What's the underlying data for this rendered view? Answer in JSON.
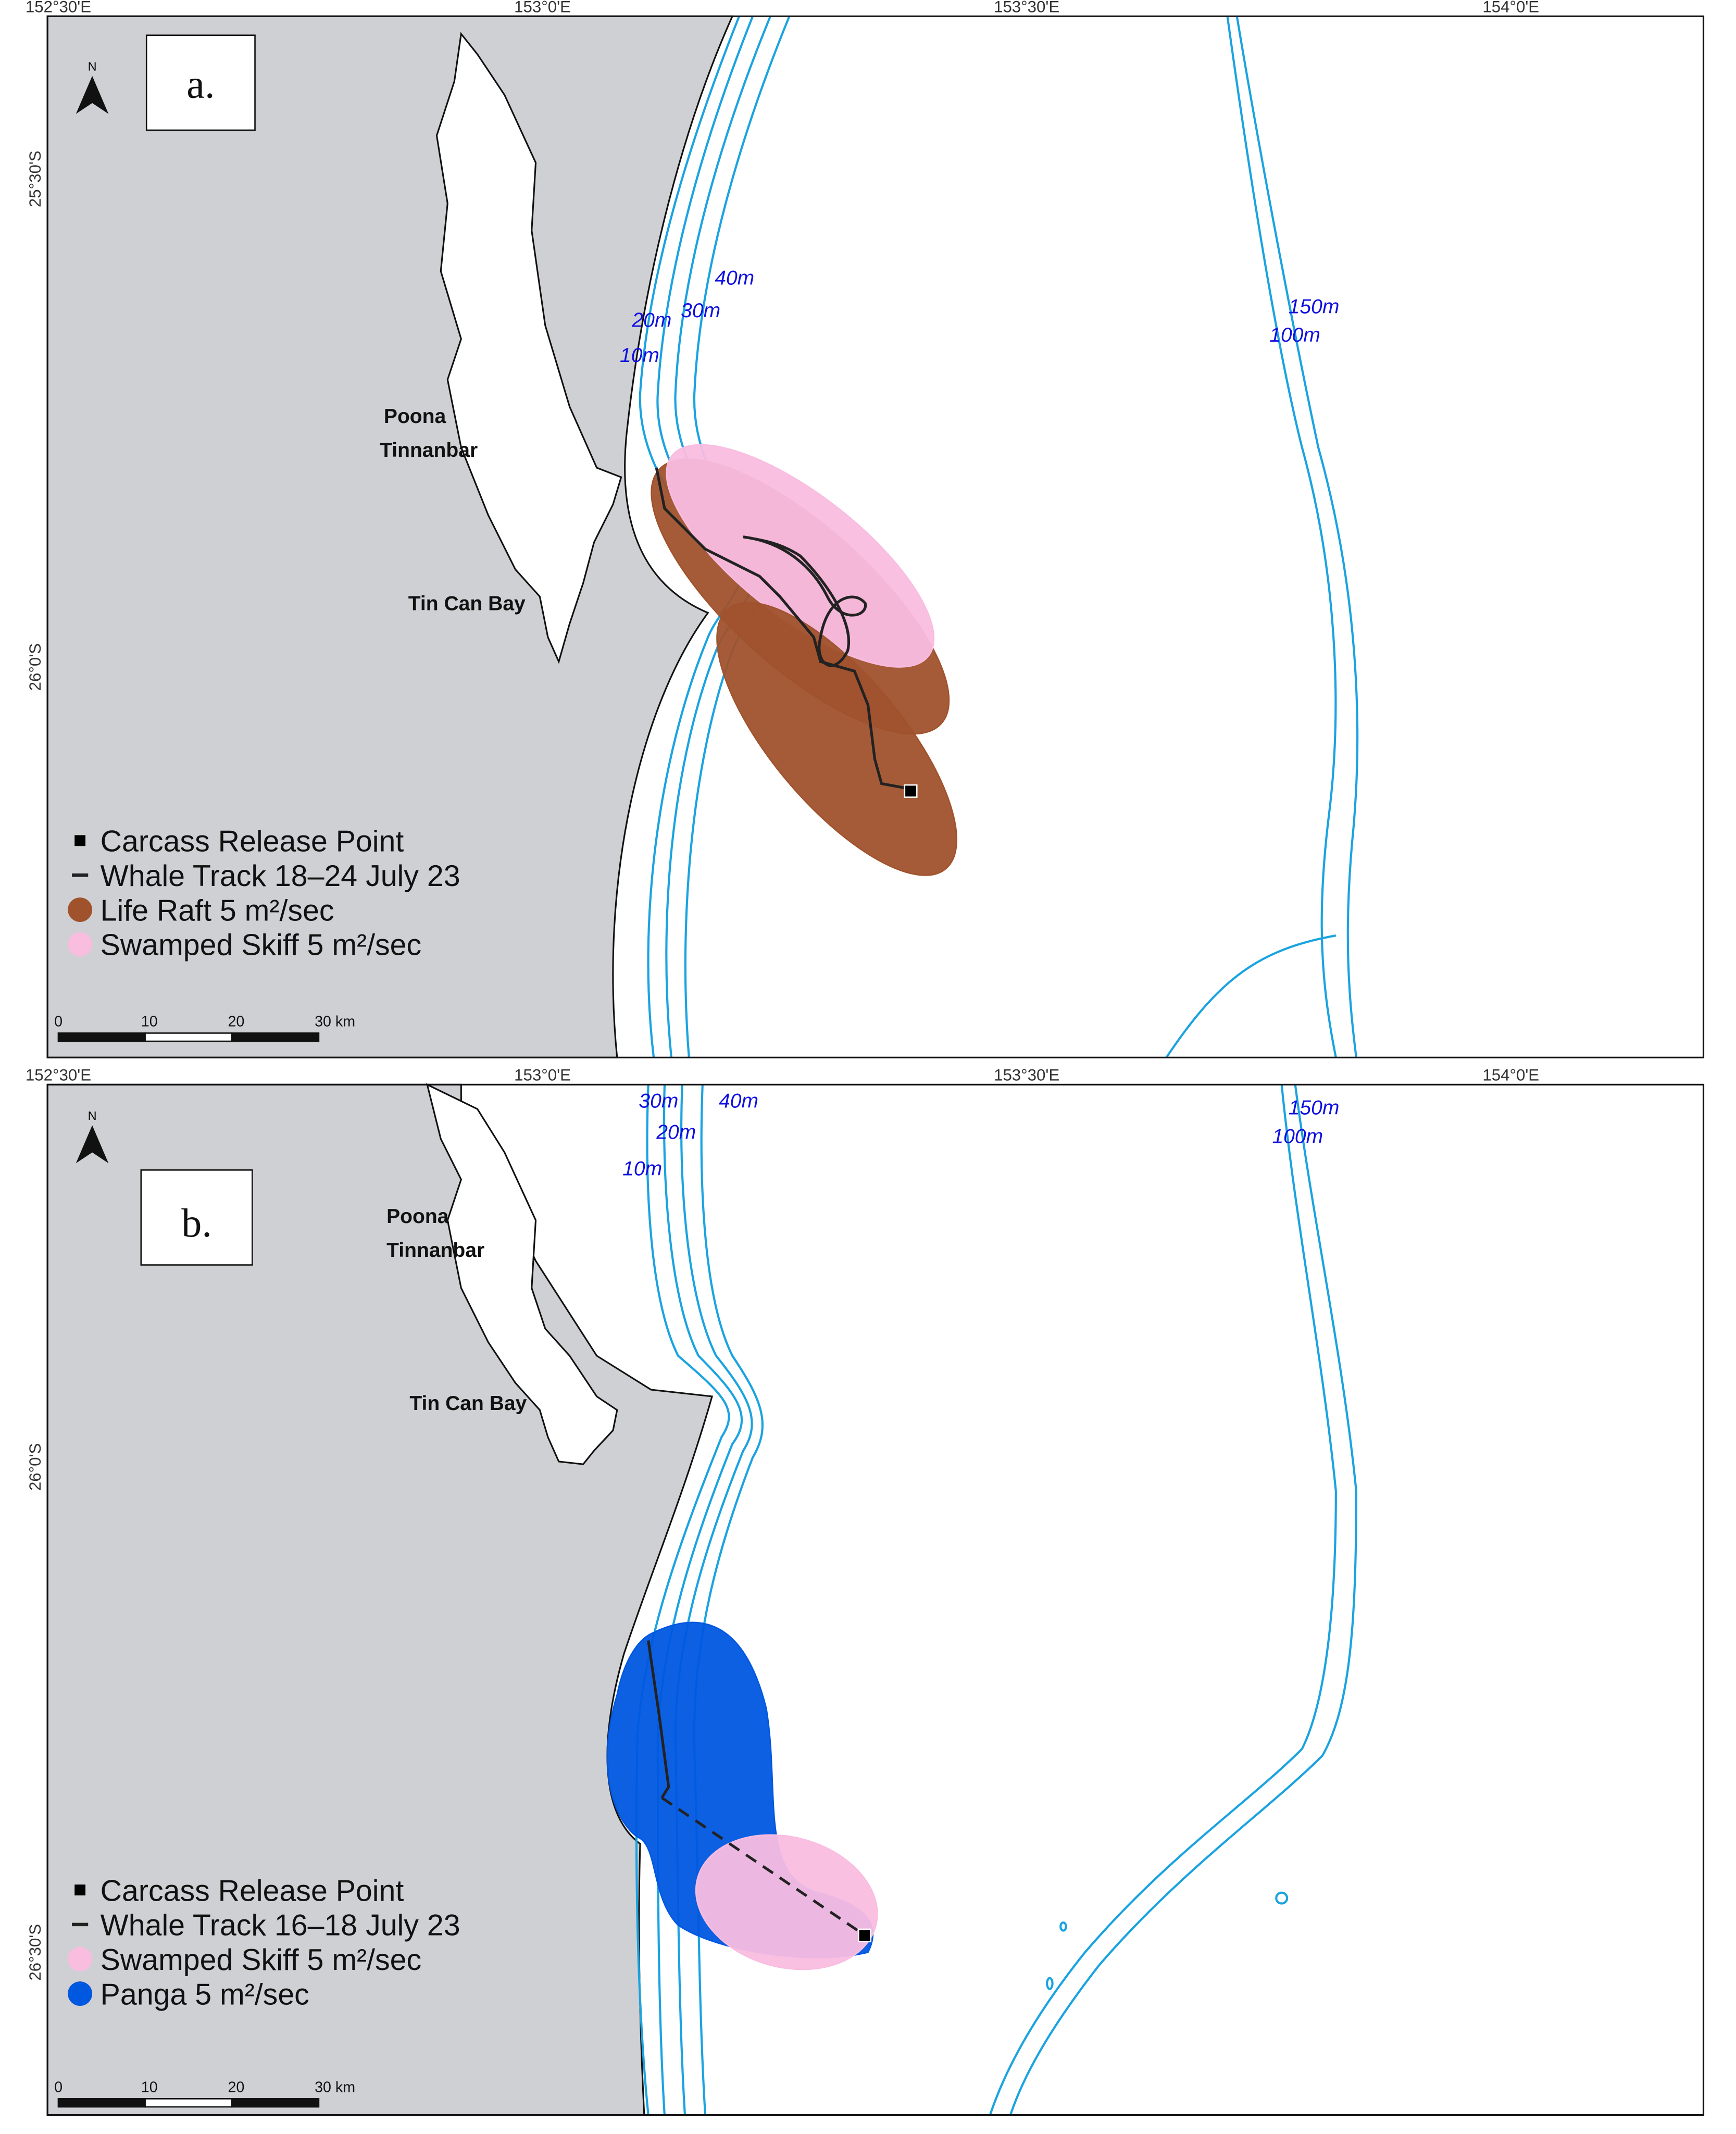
{
  "panels": [
    {
      "label": "a.",
      "north": "N",
      "lon_ticks": [
        "152°30'E",
        "153°0'E",
        "153°30'E",
        "154°0'E"
      ],
      "lat_ticks": [
        "25°30'S",
        "26°0'S"
      ],
      "places": [
        "Poona",
        "Tinnanbar",
        "Tin Can Bay"
      ],
      "depth_labels": [
        "40m",
        "30m",
        "20m",
        "10m",
        "150m",
        "100m"
      ],
      "legend": [
        {
          "label": "Carcass Release Point",
          "color": "#000000"
        },
        {
          "label": "Whale Track 18‒24 July 23",
          "color": "#222222"
        },
        {
          "label": "Life Raft 5 m²/sec",
          "color": "#a0522d"
        },
        {
          "label": "Swamped Skiff 5 m²/sec",
          "color": "#f9bde0"
        }
      ],
      "scale": [
        "0",
        "10",
        "20",
        "30 km"
      ]
    },
    {
      "label": "b.",
      "north": "N",
      "lon_ticks": [
        "152°30'E",
        "153°0'E",
        "153°30'E",
        "154°0'E"
      ],
      "lat_ticks": [
        "26°0'S",
        "26°30'S"
      ],
      "places": [
        "Poona",
        "Tinnanbar",
        "Tin Can Bay"
      ],
      "depth_labels": [
        "30m",
        "40m",
        "20m",
        "10m",
        "150m",
        "100m"
      ],
      "legend": [
        {
          "label": "Carcass Release Point",
          "color": "#000000"
        },
        {
          "label": "Whale Track 16‒18 July 23",
          "color": "#222222"
        },
        {
          "label": "Swamped Skiff 5 m²/sec",
          "color": "#f9bde0"
        },
        {
          "label": "Panga 5 m²/sec",
          "color": "#0057e0"
        }
      ],
      "scale": [
        "0",
        "10",
        "20",
        "30 km"
      ]
    }
  ]
}
